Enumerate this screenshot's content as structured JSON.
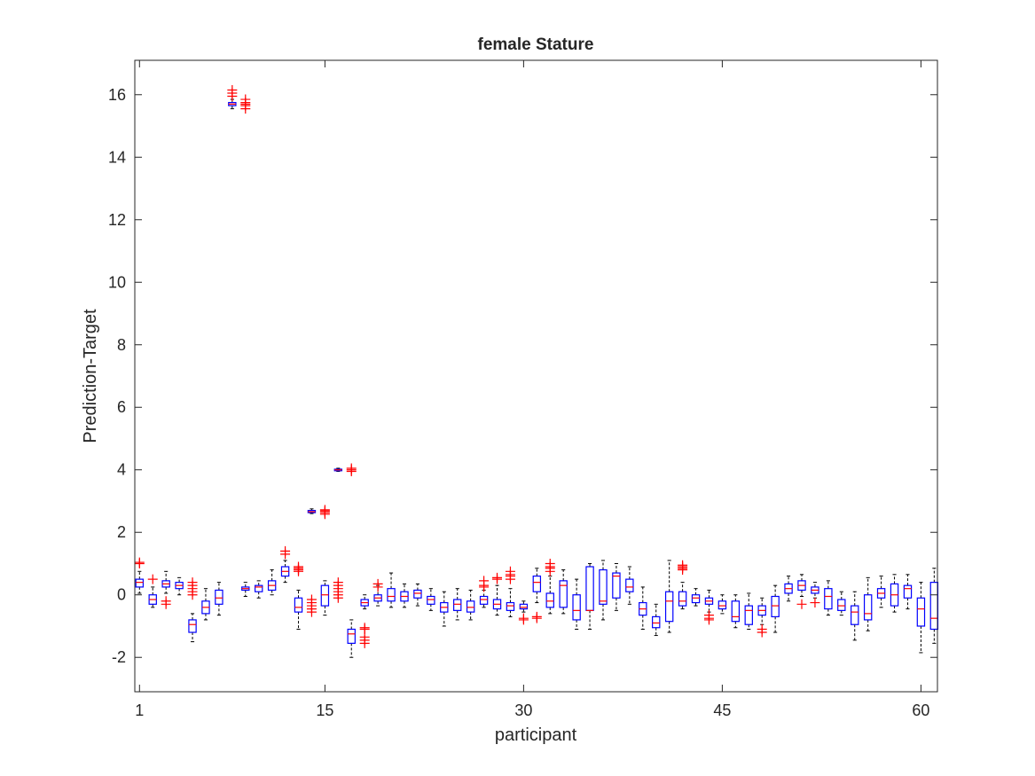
{
  "chart_data": {
    "type": "boxplot",
    "title": "female Stature",
    "xlabel": "participant",
    "ylabel": "Prediction-Target",
    "xlim": [
      0.7,
      60.3
    ],
    "ylim": [
      -3.1,
      17.1
    ],
    "xticks": [
      1,
      15,
      30,
      45,
      60
    ],
    "yticks": [
      -2,
      0,
      2,
      4,
      6,
      8,
      10,
      12,
      14,
      16
    ],
    "grid": false,
    "box_color": "#0000ff",
    "median_color": "#ff0000",
    "whisker_color": "#000000",
    "outlier_color": "#ff0000",
    "boxes": [
      {
        "x": 1,
        "low": 0.05,
        "q1": 0.25,
        "median": 0.4,
        "q3": 0.5,
        "high": 0.75,
        "outliers": [
          1.0,
          1.04
        ]
      },
      {
        "x": 2,
        "low": -0.4,
        "q1": -0.3,
        "median": -0.15,
        "q3": 0.0,
        "high": 0.25,
        "outliers": [
          0.5
        ]
      },
      {
        "x": 3,
        "low": 0.05,
        "q1": 0.25,
        "median": 0.35,
        "q3": 0.45,
        "high": 0.75,
        "outliers": [
          -0.2,
          -0.3
        ]
      },
      {
        "x": 4,
        "low": 0.0,
        "q1": 0.2,
        "median": 0.3,
        "q3": 0.4,
        "high": 0.55,
        "outliers": []
      },
      {
        "x": 5,
        "low": -1.5,
        "q1": -1.2,
        "median": -0.95,
        "q3": -0.8,
        "high": -0.6,
        "outliers": [
          0.0,
          0.1,
          0.2,
          0.3,
          0.4
        ]
      },
      {
        "x": 6,
        "low": -0.8,
        "q1": -0.6,
        "median": -0.4,
        "q3": -0.2,
        "high": 0.2,
        "outliers": []
      },
      {
        "x": 7,
        "low": -0.65,
        "q1": -0.3,
        "median": -0.1,
        "q3": 0.15,
        "high": 0.4,
        "outliers": []
      },
      {
        "x": 8,
        "low": 15.55,
        "q1": 15.65,
        "median": 15.7,
        "q3": 15.75,
        "high": 15.85,
        "outliers": [
          15.95,
          16.05,
          16.15
        ]
      },
      {
        "x": 9,
        "low": -0.05,
        "q1": 0.15,
        "median": 0.2,
        "q3": 0.25,
        "high": 0.4,
        "outliers": [
          15.55,
          15.65,
          15.7,
          15.75,
          15.85
        ]
      },
      {
        "x": 10,
        "low": -0.1,
        "q1": 0.1,
        "median": 0.25,
        "q3": 0.3,
        "high": 0.45,
        "outliers": []
      },
      {
        "x": 11,
        "low": 0.0,
        "q1": 0.15,
        "median": 0.3,
        "q3": 0.45,
        "high": 0.8,
        "outliers": []
      },
      {
        "x": 12,
        "low": 0.4,
        "q1": 0.6,
        "median": 0.75,
        "q3": 0.9,
        "high": 1.1,
        "outliers": [
          1.3,
          1.4
        ]
      },
      {
        "x": 13,
        "low": -1.1,
        "q1": -0.55,
        "median": -0.4,
        "q3": -0.1,
        "high": 0.15,
        "outliers": [
          0.75,
          0.8,
          0.85,
          0.9
        ]
      },
      {
        "x": 14,
        "low": 2.6,
        "q1": 2.63,
        "median": 2.66,
        "q3": 2.7,
        "high": 2.75,
        "outliers": [
          -0.55,
          -0.45,
          -0.35,
          -0.25,
          -0.15
        ]
      },
      {
        "x": 15,
        "low": -0.65,
        "q1": -0.35,
        "median": 0.0,
        "q3": 0.3,
        "high": 0.45,
        "outliers": [
          2.58,
          2.63,
          2.68,
          2.72
        ]
      },
      {
        "x": 16,
        "low": 3.95,
        "q1": 3.97,
        "median": 4.0,
        "q3": 4.02,
        "high": 4.05,
        "outliers": [
          -0.1,
          0.0,
          0.1,
          0.2,
          0.3,
          0.4
        ]
      },
      {
        "x": 17,
        "low": -2.0,
        "q1": -1.55,
        "median": -1.25,
        "q3": -1.1,
        "high": -0.8,
        "outliers": [
          3.95,
          4.0,
          4.05
        ]
      },
      {
        "x": 18,
        "low": -0.45,
        "q1": -0.35,
        "median": -0.25,
        "q3": -0.15,
        "high": 0.0,
        "outliers": [
          -1.55,
          -1.45,
          -1.35,
          -1.1,
          -1.05
        ]
      },
      {
        "x": 19,
        "low": -0.35,
        "q1": -0.2,
        "median": -0.1,
        "q3": 0.0,
        "high": 0.3,
        "outliers": [
          0.25,
          0.35
        ]
      },
      {
        "x": 20,
        "low": -0.4,
        "q1": -0.2,
        "median": -0.05,
        "q3": 0.2,
        "high": 0.7,
        "outliers": []
      },
      {
        "x": 21,
        "low": -0.4,
        "q1": -0.2,
        "median": -0.05,
        "q3": 0.1,
        "high": 0.35,
        "outliers": []
      },
      {
        "x": 22,
        "low": -0.35,
        "q1": -0.1,
        "median": 0.05,
        "q3": 0.15,
        "high": 0.35,
        "outliers": []
      },
      {
        "x": 23,
        "low": -0.5,
        "q1": -0.3,
        "median": -0.15,
        "q3": -0.05,
        "high": 0.2,
        "outliers": []
      },
      {
        "x": 24,
        "low": -1.0,
        "q1": -0.55,
        "median": -0.4,
        "q3": -0.25,
        "high": 0.1,
        "outliers": []
      },
      {
        "x": 25,
        "low": -0.8,
        "q1": -0.5,
        "median": -0.3,
        "q3": -0.15,
        "high": 0.2,
        "outliers": []
      },
      {
        "x": 26,
        "low": -0.8,
        "q1": -0.55,
        "median": -0.4,
        "q3": -0.2,
        "high": 0.15,
        "outliers": []
      },
      {
        "x": 27,
        "low": -0.4,
        "q1": -0.3,
        "median": -0.15,
        "q3": -0.05,
        "high": 0.15,
        "outliers": [
          0.25,
          0.3,
          0.45
        ]
      },
      {
        "x": 28,
        "low": -0.65,
        "q1": -0.45,
        "median": -0.3,
        "q3": -0.15,
        "high": 0.3,
        "outliers": [
          0.5,
          0.55
        ]
      },
      {
        "x": 29,
        "low": -0.7,
        "q1": -0.5,
        "median": -0.35,
        "q3": -0.25,
        "high": 0.2,
        "outliers": [
          0.5,
          0.6,
          0.65,
          0.75
        ]
      },
      {
        "x": 30,
        "low": -0.55,
        "q1": -0.45,
        "median": -0.4,
        "q3": -0.3,
        "high": -0.2,
        "outliers": [
          -0.75,
          -0.8
        ]
      },
      {
        "x": 31,
        "low": -0.25,
        "q1": 0.1,
        "median": 0.4,
        "q3": 0.6,
        "high": 0.85,
        "outliers": [
          -0.75,
          -0.7
        ]
      },
      {
        "x": 32,
        "low": -0.6,
        "q1": -0.4,
        "median": -0.2,
        "q3": 0.05,
        "high": 0.6,
        "outliers": [
          0.75,
          0.85,
          0.9,
          1.0
        ]
      },
      {
        "x": 33,
        "low": -0.6,
        "q1": -0.4,
        "median": 0.3,
        "q3": 0.45,
        "high": 0.8,
        "outliers": []
      },
      {
        "x": 34,
        "low": -1.1,
        "q1": -0.8,
        "median": -0.5,
        "q3": 0.0,
        "high": 0.5,
        "outliers": []
      },
      {
        "x": 35,
        "low": -1.1,
        "q1": -0.5,
        "median": -0.5,
        "q3": 0.9,
        "high": 1.0,
        "outliers": []
      },
      {
        "x": 36,
        "low": -0.8,
        "q1": -0.3,
        "median": -0.2,
        "q3": 0.8,
        "high": 1.1,
        "outliers": []
      },
      {
        "x": 37,
        "low": -0.5,
        "q1": -0.1,
        "median": 0.6,
        "q3": 0.7,
        "high": 1.0,
        "outliers": []
      },
      {
        "x": 38,
        "low": -0.3,
        "q1": 0.1,
        "median": 0.25,
        "q3": 0.5,
        "high": 0.9,
        "outliers": []
      },
      {
        "x": 39,
        "low": -1.1,
        "q1": -0.65,
        "median": -0.45,
        "q3": -0.25,
        "high": 0.25,
        "outliers": []
      },
      {
        "x": 40,
        "low": -1.3,
        "q1": -1.05,
        "median": -0.9,
        "q3": -0.7,
        "high": -0.3,
        "outliers": []
      },
      {
        "x": 41,
        "low": -1.2,
        "q1": -0.85,
        "median": -0.2,
        "q3": 0.1,
        "high": 1.1,
        "outliers": []
      },
      {
        "x": 42,
        "low": -0.45,
        "q1": -0.35,
        "median": -0.2,
        "q3": 0.1,
        "high": 0.4,
        "outliers": [
          0.8,
          0.85,
          0.9,
          0.95
        ]
      },
      {
        "x": 43,
        "low": -0.35,
        "q1": -0.25,
        "median": -0.1,
        "q3": 0.0,
        "high": 0.2,
        "outliers": []
      },
      {
        "x": 44,
        "low": -0.55,
        "q1": -0.3,
        "median": -0.2,
        "q3": -0.1,
        "high": 0.15,
        "outliers": [
          -0.65,
          -0.75,
          -0.8
        ]
      },
      {
        "x": 45,
        "low": -0.6,
        "q1": -0.45,
        "median": -0.35,
        "q3": -0.2,
        "high": 0.0,
        "outliers": []
      },
      {
        "x": 46,
        "low": -1.05,
        "q1": -0.85,
        "median": -0.7,
        "q3": -0.2,
        "high": 0.0,
        "outliers": []
      },
      {
        "x": 47,
        "low": -1.1,
        "q1": -0.95,
        "median": -0.5,
        "q3": -0.35,
        "high": 0.05,
        "outliers": []
      },
      {
        "x": 48,
        "low": -0.95,
        "q1": -0.65,
        "median": -0.5,
        "q3": -0.35,
        "high": -0.1,
        "outliers": [
          -1.1,
          -1.2
        ]
      },
      {
        "x": 49,
        "low": -1.2,
        "q1": -0.7,
        "median": -0.35,
        "q3": -0.05,
        "high": 0.3,
        "outliers": []
      },
      {
        "x": 50,
        "low": -0.2,
        "q1": 0.05,
        "median": 0.2,
        "q3": 0.35,
        "high": 0.6,
        "outliers": []
      },
      {
        "x": 51,
        "low": -0.05,
        "q1": 0.15,
        "median": 0.3,
        "q3": 0.45,
        "high": 0.65,
        "outliers": [
          -0.3
        ]
      },
      {
        "x": 52,
        "low": -0.1,
        "q1": 0.05,
        "median": 0.15,
        "q3": 0.25,
        "high": 0.4,
        "outliers": [
          -0.25
        ]
      },
      {
        "x": 53,
        "low": -0.65,
        "q1": -0.45,
        "median": -0.05,
        "q3": 0.2,
        "high": 0.45,
        "outliers": []
      },
      {
        "x": 54,
        "low": -0.65,
        "q1": -0.5,
        "median": -0.35,
        "q3": -0.15,
        "high": 0.1,
        "outliers": []
      },
      {
        "x": 55,
        "low": -1.45,
        "q1": -0.95,
        "median": -0.55,
        "q3": -0.35,
        "high": 0.1,
        "outliers": []
      },
      {
        "x": 56,
        "low": -1.15,
        "q1": -0.8,
        "median": -0.6,
        "q3": 0.0,
        "high": 0.55,
        "outliers": []
      },
      {
        "x": 57,
        "low": -0.4,
        "q1": -0.1,
        "median": 0.05,
        "q3": 0.2,
        "high": 0.6,
        "outliers": []
      },
      {
        "x": 58,
        "low": -0.55,
        "q1": -0.35,
        "median": 0.0,
        "q3": 0.35,
        "high": 0.65,
        "outliers": []
      },
      {
        "x": 59,
        "low": -0.45,
        "q1": -0.1,
        "median": 0.2,
        "q3": 0.3,
        "high": 0.65,
        "outliers": []
      },
      {
        "x": 60,
        "low": -1.85,
        "q1": -1.0,
        "median": -0.45,
        "q3": -0.1,
        "high": 0.4,
        "outliers": []
      },
      {
        "x": 61,
        "low": -1.55,
        "q1": -1.1,
        "median": -0.75,
        "q3": 0.4,
        "high": 0.85,
        "outliers": []
      }
    ]
  }
}
